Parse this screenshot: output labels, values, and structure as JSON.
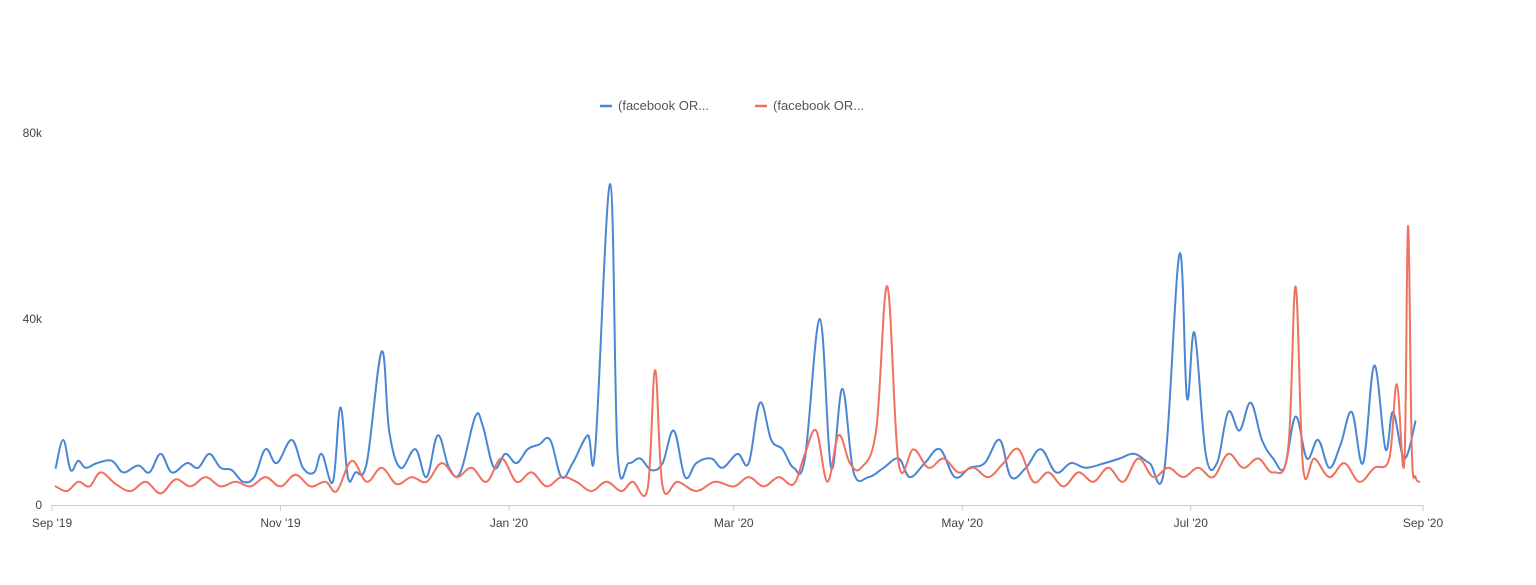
{
  "chart_data": {
    "type": "line",
    "title": "",
    "xlabel": "",
    "ylabel": "",
    "ylim": [
      0,
      80000
    ],
    "yticks": [
      {
        "value": 0,
        "label": "0"
      },
      {
        "value": 40000,
        "label": "40k"
      },
      {
        "value": 80000,
        "label": "80k"
      }
    ],
    "x_range": [
      "2019-09-01",
      "2020-09-01"
    ],
    "xticks": [
      {
        "date": "2019-09-01",
        "label": "Sep '19"
      },
      {
        "date": "2019-11-01",
        "label": "Nov '19"
      },
      {
        "date": "2020-01-01",
        "label": "Jan '20"
      },
      {
        "date": "2020-03-01",
        "label": "Mar '20"
      },
      {
        "date": "2020-05-01",
        "label": "May '20"
      },
      {
        "date": "2020-07-01",
        "label": "Jul '20"
      },
      {
        "date": "2020-09-01",
        "label": "Sep '20"
      }
    ],
    "grid": false,
    "legend_position": "top-center",
    "series": [
      {
        "name": "(facebook OR...",
        "color": "#4a86d4",
        "points": [
          [
            "2019-09-02",
            8000
          ],
          [
            "2019-09-04",
            14000
          ],
          [
            "2019-09-06",
            7500
          ],
          [
            "2019-09-08",
            9500
          ],
          [
            "2019-09-10",
            8000
          ],
          [
            "2019-09-13",
            9000
          ],
          [
            "2019-09-17",
            9500
          ],
          [
            "2019-09-20",
            7000
          ],
          [
            "2019-09-24",
            8500
          ],
          [
            "2019-09-27",
            7000
          ],
          [
            "2019-09-30",
            11000
          ],
          [
            "2019-10-03",
            7000
          ],
          [
            "2019-10-07",
            9000
          ],
          [
            "2019-10-10",
            8000
          ],
          [
            "2019-10-13",
            11000
          ],
          [
            "2019-10-16",
            8000
          ],
          [
            "2019-10-19",
            7500
          ],
          [
            "2019-10-22",
            5000
          ],
          [
            "2019-10-25",
            6000
          ],
          [
            "2019-10-28",
            12000
          ],
          [
            "2019-10-31",
            9000
          ],
          [
            "2019-11-04",
            14000
          ],
          [
            "2019-11-07",
            8000
          ],
          [
            "2019-11-10",
            7000
          ],
          [
            "2019-11-12",
            11000
          ],
          [
            "2019-11-15",
            5000
          ],
          [
            "2019-11-17",
            21000
          ],
          [
            "2019-11-19",
            6000
          ],
          [
            "2019-11-21",
            7000
          ],
          [
            "2019-11-24",
            9000
          ],
          [
            "2019-11-28",
            33000
          ],
          [
            "2019-11-30",
            16000
          ],
          [
            "2019-12-03",
            8000
          ],
          [
            "2019-12-07",
            12000
          ],
          [
            "2019-12-10",
            6000
          ],
          [
            "2019-12-13",
            15000
          ],
          [
            "2019-12-16",
            8000
          ],
          [
            "2019-12-19",
            7000
          ],
          [
            "2019-12-23",
            19000
          ],
          [
            "2019-12-25",
            17000
          ],
          [
            "2019-12-28",
            8000
          ],
          [
            "2019-12-31",
            11000
          ],
          [
            "2020-01-03",
            9000
          ],
          [
            "2020-01-06",
            12000
          ],
          [
            "2020-01-09",
            13000
          ],
          [
            "2020-01-12",
            14000
          ],
          [
            "2020-01-15",
            6000
          ],
          [
            "2020-01-18",
            9000
          ],
          [
            "2020-01-22",
            15000
          ],
          [
            "2020-01-24",
            12000
          ],
          [
            "2020-01-28",
            69000
          ],
          [
            "2020-01-30",
            11000
          ],
          [
            "2020-02-02",
            9000
          ],
          [
            "2020-02-05",
            10000
          ],
          [
            "2020-02-08",
            7500
          ],
          [
            "2020-02-11",
            9000
          ],
          [
            "2020-02-14",
            16000
          ],
          [
            "2020-02-17",
            6000
          ],
          [
            "2020-02-20",
            9000
          ],
          [
            "2020-02-24",
            10000
          ],
          [
            "2020-02-27",
            8000
          ],
          [
            "2020-03-02",
            11000
          ],
          [
            "2020-03-05",
            9000
          ],
          [
            "2020-03-08",
            22000
          ],
          [
            "2020-03-11",
            14000
          ],
          [
            "2020-03-14",
            12000
          ],
          [
            "2020-03-17",
            8000
          ],
          [
            "2020-03-20",
            10000
          ],
          [
            "2020-03-24",
            40000
          ],
          [
            "2020-03-27",
            8000
          ],
          [
            "2020-03-30",
            25000
          ],
          [
            "2020-04-02",
            7000
          ],
          [
            "2020-04-06",
            6000
          ],
          [
            "2020-04-10",
            8000
          ],
          [
            "2020-04-14",
            10000
          ],
          [
            "2020-04-17",
            6000
          ],
          [
            "2020-04-21",
            9000
          ],
          [
            "2020-04-25",
            12000
          ],
          [
            "2020-04-29",
            6000
          ],
          [
            "2020-05-03",
            8000
          ],
          [
            "2020-05-07",
            9000
          ],
          [
            "2020-05-11",
            14000
          ],
          [
            "2020-05-14",
            6000
          ],
          [
            "2020-05-18",
            8000
          ],
          [
            "2020-05-22",
            12000
          ],
          [
            "2020-05-26",
            7000
          ],
          [
            "2020-05-30",
            9000
          ],
          [
            "2020-06-03",
            8000
          ],
          [
            "2020-06-08",
            9000
          ],
          [
            "2020-06-12",
            10000
          ],
          [
            "2020-06-16",
            11000
          ],
          [
            "2020-06-20",
            9000
          ],
          [
            "2020-06-24",
            8000
          ],
          [
            "2020-06-28",
            54000
          ],
          [
            "2020-06-30",
            23000
          ],
          [
            "2020-07-02",
            37000
          ],
          [
            "2020-07-05",
            11000
          ],
          [
            "2020-07-08",
            9000
          ],
          [
            "2020-07-11",
            20000
          ],
          [
            "2020-07-14",
            16000
          ],
          [
            "2020-07-17",
            22000
          ],
          [
            "2020-07-20",
            14000
          ],
          [
            "2020-07-23",
            10000
          ],
          [
            "2020-07-26",
            8000
          ],
          [
            "2020-07-29",
            19000
          ],
          [
            "2020-08-01",
            10000
          ],
          [
            "2020-08-04",
            14000
          ],
          [
            "2020-08-07",
            8000
          ],
          [
            "2020-08-10",
            13000
          ],
          [
            "2020-08-13",
            20000
          ],
          [
            "2020-08-16",
            9000
          ],
          [
            "2020-08-19",
            30000
          ],
          [
            "2020-08-22",
            12000
          ],
          [
            "2020-08-24",
            20000
          ],
          [
            "2020-08-27",
            10000
          ],
          [
            "2020-08-30",
            18000
          ]
        ]
      },
      {
        "name": "(facebook OR...",
        "color": "#f07160",
        "points": [
          [
            "2019-09-02",
            4000
          ],
          [
            "2019-09-05",
            3000
          ],
          [
            "2019-09-08",
            5000
          ],
          [
            "2019-09-11",
            4000
          ],
          [
            "2019-09-14",
            7000
          ],
          [
            "2019-09-18",
            4500
          ],
          [
            "2019-09-22",
            3000
          ],
          [
            "2019-09-26",
            5000
          ],
          [
            "2019-09-30",
            2500
          ],
          [
            "2019-10-04",
            5500
          ],
          [
            "2019-10-08",
            4000
          ],
          [
            "2019-10-12",
            6000
          ],
          [
            "2019-10-16",
            4000
          ],
          [
            "2019-10-20",
            5000
          ],
          [
            "2019-10-24",
            4000
          ],
          [
            "2019-10-28",
            6000
          ],
          [
            "2019-11-01",
            4000
          ],
          [
            "2019-11-05",
            6500
          ],
          [
            "2019-11-09",
            4000
          ],
          [
            "2019-11-13",
            5000
          ],
          [
            "2019-11-16",
            3000
          ],
          [
            "2019-11-20",
            9500
          ],
          [
            "2019-11-24",
            5000
          ],
          [
            "2019-11-28",
            8000
          ],
          [
            "2019-12-02",
            4500
          ],
          [
            "2019-12-06",
            6000
          ],
          [
            "2019-12-10",
            5000
          ],
          [
            "2019-12-14",
            9000
          ],
          [
            "2019-12-18",
            6000
          ],
          [
            "2019-12-22",
            8000
          ],
          [
            "2019-12-26",
            5000
          ],
          [
            "2019-12-30",
            10000
          ],
          [
            "2020-01-03",
            5000
          ],
          [
            "2020-01-07",
            7000
          ],
          [
            "2020-01-11",
            4000
          ],
          [
            "2020-01-15",
            6000
          ],
          [
            "2020-01-19",
            5000
          ],
          [
            "2020-01-23",
            3000
          ],
          [
            "2020-01-27",
            5000
          ],
          [
            "2020-01-31",
            3000
          ],
          [
            "2020-02-03",
            5000
          ],
          [
            "2020-02-07",
            3500
          ],
          [
            "2020-02-09",
            29000
          ],
          [
            "2020-02-11",
            4000
          ],
          [
            "2020-02-15",
            5000
          ],
          [
            "2020-02-20",
            3000
          ],
          [
            "2020-02-25",
            5000
          ],
          [
            "2020-03-01",
            4000
          ],
          [
            "2020-03-05",
            6000
          ],
          [
            "2020-03-09",
            4000
          ],
          [
            "2020-03-13",
            6000
          ],
          [
            "2020-03-17",
            4500
          ],
          [
            "2020-03-20",
            11000
          ],
          [
            "2020-03-23",
            16000
          ],
          [
            "2020-03-26",
            5000
          ],
          [
            "2020-03-29",
            15000
          ],
          [
            "2020-04-01",
            9000
          ],
          [
            "2020-04-04",
            8000
          ],
          [
            "2020-04-08",
            16000
          ],
          [
            "2020-04-11",
            47000
          ],
          [
            "2020-04-14",
            9000
          ],
          [
            "2020-04-18",
            12000
          ],
          [
            "2020-04-22",
            8000
          ],
          [
            "2020-04-26",
            10000
          ],
          [
            "2020-04-30",
            7000
          ],
          [
            "2020-05-04",
            8000
          ],
          [
            "2020-05-08",
            6000
          ],
          [
            "2020-05-12",
            9000
          ],
          [
            "2020-05-16",
            12000
          ],
          [
            "2020-05-20",
            5000
          ],
          [
            "2020-05-24",
            7000
          ],
          [
            "2020-05-28",
            4000
          ],
          [
            "2020-06-01",
            7000
          ],
          [
            "2020-06-05",
            5000
          ],
          [
            "2020-06-09",
            8000
          ],
          [
            "2020-06-13",
            5000
          ],
          [
            "2020-06-17",
            10000
          ],
          [
            "2020-06-21",
            6000
          ],
          [
            "2020-06-25",
            8000
          ],
          [
            "2020-06-29",
            6000
          ],
          [
            "2020-07-03",
            8000
          ],
          [
            "2020-07-07",
            6000
          ],
          [
            "2020-07-11",
            11000
          ],
          [
            "2020-07-15",
            8000
          ],
          [
            "2020-07-19",
            10000
          ],
          [
            "2020-07-23",
            7000
          ],
          [
            "2020-07-27",
            12000
          ],
          [
            "2020-07-29",
            47000
          ],
          [
            "2020-07-31",
            8000
          ],
          [
            "2020-08-03",
            10000
          ],
          [
            "2020-08-07",
            6000
          ],
          [
            "2020-08-11",
            9000
          ],
          [
            "2020-08-15",
            5000
          ],
          [
            "2020-08-19",
            8000
          ],
          [
            "2020-08-23",
            10000
          ],
          [
            "2020-08-25",
            26000
          ],
          [
            "2020-08-27",
            9000
          ],
          [
            "2020-08-28",
            60000
          ],
          [
            "2020-08-29",
            12000
          ],
          [
            "2020-08-30",
            6000
          ],
          [
            "2020-08-31",
            5000
          ]
        ]
      }
    ]
  }
}
